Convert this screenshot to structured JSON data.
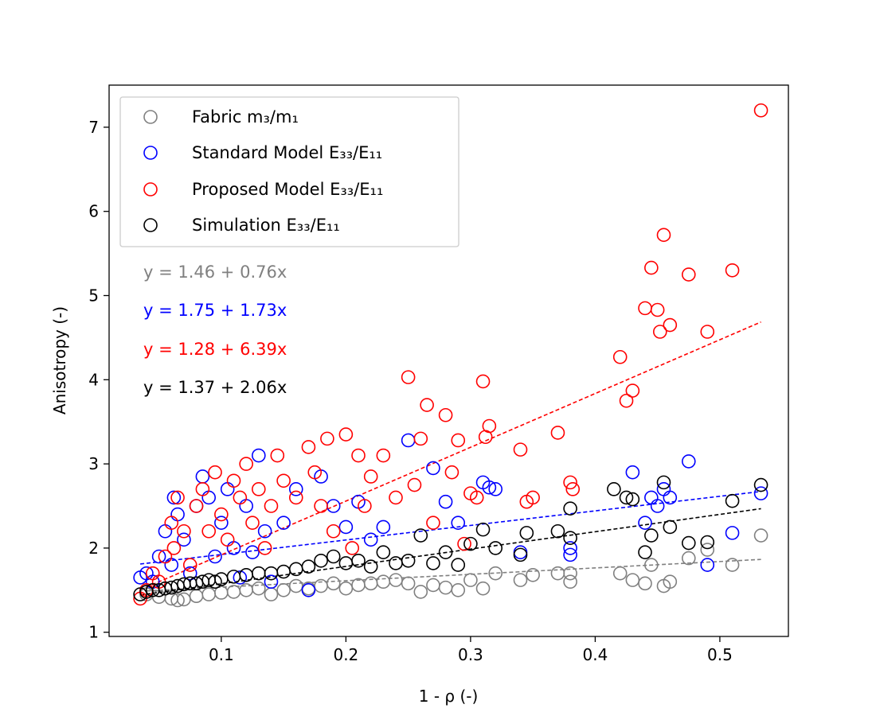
{
  "chart_data": {
    "type": "scatter",
    "xlabel": "1 - ρ (-)",
    "ylabel": "Anisotropy (-)",
    "xlim": [
      0.01,
      0.555
    ],
    "ylim": [
      0.95,
      7.5
    ],
    "x_ticks": [
      0.1,
      0.2,
      0.3,
      0.4,
      0.5
    ],
    "x_tick_labels": [
      "0.1",
      "0.2",
      "0.3",
      "0.4",
      "0.5"
    ],
    "y_ticks": [
      1,
      2,
      3,
      4,
      5,
      6,
      7
    ],
    "y_tick_labels": [
      "1",
      "2",
      "3",
      "4",
      "5",
      "6",
      "7"
    ],
    "grid": false,
    "legend_position": "top-left",
    "legend": [
      {
        "label": "Fabric m₃/m₁",
        "color": "#808080"
      },
      {
        "label": "Standard Model E₃₃/E₁₁",
        "color": "#0000ff"
      },
      {
        "label": "Proposed Model E₃₃/E₁₁",
        "color": "#ff0000"
      },
      {
        "label": "Simulation E₃₃/E₁₁",
        "color": "#000000"
      }
    ],
    "equations": [
      {
        "text": "y = 1.46 + 0.76x",
        "color": "#808080"
      },
      {
        "text": "y = 1.75 + 1.73x",
        "color": "#0000ff"
      },
      {
        "text": "y = 1.28 + 6.39x",
        "color": "#ff0000"
      },
      {
        "text": "y = 1.37 + 2.06x",
        "color": "#000000"
      }
    ],
    "series": [
      {
        "name": "Fabric m₃/m₁",
        "color": "#808080",
        "trend": {
          "intercept": 1.46,
          "slope": 0.76
        },
        "x": [
          0.04,
          0.05,
          0.06,
          0.065,
          0.07,
          0.08,
          0.09,
          0.1,
          0.11,
          0.12,
          0.13,
          0.14,
          0.15,
          0.16,
          0.17,
          0.18,
          0.19,
          0.2,
          0.21,
          0.22,
          0.23,
          0.24,
          0.25,
          0.26,
          0.27,
          0.28,
          0.29,
          0.3,
          0.31,
          0.32,
          0.34,
          0.35,
          0.37,
          0.38,
          0.38,
          0.42,
          0.43,
          0.44,
          0.445,
          0.455,
          0.46,
          0.475,
          0.49,
          0.51,
          0.533
        ],
        "y": [
          1.45,
          1.42,
          1.4,
          1.38,
          1.39,
          1.43,
          1.45,
          1.47,
          1.48,
          1.5,
          1.52,
          1.45,
          1.5,
          1.55,
          1.52,
          1.55,
          1.58,
          1.52,
          1.56,
          1.58,
          1.6,
          1.62,
          1.58,
          1.48,
          1.56,
          1.53,
          1.5,
          1.62,
          1.52,
          1.7,
          1.62,
          1.68,
          1.7,
          1.6,
          1.7,
          1.7,
          1.62,
          1.58,
          1.8,
          1.55,
          1.6,
          1.88,
          1.98,
          1.8,
          2.15
        ]
      },
      {
        "name": "Standard Model E₃₃/E₁₁",
        "color": "#0000ff",
        "trend": {
          "intercept": 1.75,
          "slope": 1.73
        },
        "x": [
          0.035,
          0.04,
          0.045,
          0.05,
          0.055,
          0.06,
          0.062,
          0.065,
          0.07,
          0.075,
          0.08,
          0.085,
          0.09,
          0.095,
          0.1,
          0.105,
          0.11,
          0.115,
          0.12,
          0.125,
          0.13,
          0.135,
          0.14,
          0.15,
          0.16,
          0.17,
          0.18,
          0.19,
          0.2,
          0.21,
          0.22,
          0.23,
          0.25,
          0.27,
          0.28,
          0.29,
          0.31,
          0.315,
          0.32,
          0.34,
          0.38,
          0.38,
          0.43,
          0.44,
          0.445,
          0.45,
          0.455,
          0.46,
          0.475,
          0.49,
          0.51,
          0.533
        ],
        "y": [
          1.65,
          1.7,
          1.6,
          1.9,
          2.2,
          1.8,
          2.6,
          2.4,
          2.1,
          1.7,
          2.5,
          2.85,
          2.6,
          1.9,
          2.3,
          2.7,
          2.0,
          1.65,
          2.5,
          1.95,
          3.1,
          2.2,
          1.6,
          2.3,
          2.7,
          1.5,
          2.85,
          2.5,
          2.25,
          2.55,
          2.1,
          2.25,
          3.28,
          2.95,
          2.55,
          2.3,
          2.78,
          2.72,
          2.7,
          1.95,
          2.0,
          1.92,
          2.9,
          2.3,
          2.6,
          2.5,
          2.7,
          2.6,
          3.03,
          1.8,
          2.18,
          2.65
        ]
      },
      {
        "name": "Proposed Model E₃₃/E₁₁",
        "color": "#ff0000",
        "trend": {
          "intercept": 1.28,
          "slope": 6.39
        },
        "x": [
          0.035,
          0.04,
          0.045,
          0.05,
          0.055,
          0.06,
          0.062,
          0.065,
          0.07,
          0.075,
          0.08,
          0.085,
          0.09,
          0.095,
          0.1,
          0.105,
          0.11,
          0.115,
          0.12,
          0.125,
          0.13,
          0.135,
          0.14,
          0.145,
          0.15,
          0.16,
          0.17,
          0.175,
          0.18,
          0.185,
          0.19,
          0.2,
          0.205,
          0.21,
          0.215,
          0.22,
          0.23,
          0.24,
          0.25,
          0.255,
          0.26,
          0.265,
          0.27,
          0.28,
          0.285,
          0.29,
          0.295,
          0.3,
          0.305,
          0.31,
          0.312,
          0.315,
          0.34,
          0.345,
          0.35,
          0.37,
          0.38,
          0.382,
          0.42,
          0.425,
          0.43,
          0.44,
          0.445,
          0.45,
          0.452,
          0.455,
          0.46,
          0.475,
          0.49,
          0.51,
          0.533
        ],
        "y": [
          1.4,
          1.5,
          1.7,
          1.6,
          1.9,
          2.3,
          2.0,
          2.6,
          2.2,
          1.8,
          2.5,
          2.7,
          2.2,
          2.9,
          2.4,
          2.1,
          2.8,
          2.6,
          3.0,
          2.3,
          2.7,
          2.0,
          2.5,
          3.1,
          2.8,
          2.6,
          3.2,
          2.9,
          2.5,
          3.3,
          2.2,
          3.35,
          2.0,
          3.1,
          2.5,
          2.85,
          3.1,
          2.6,
          4.03,
          2.75,
          3.3,
          3.7,
          2.3,
          3.58,
          2.9,
          3.28,
          2.05,
          2.65,
          2.6,
          3.98,
          3.32,
          3.45,
          3.17,
          2.55,
          2.6,
          3.37,
          2.78,
          2.7,
          4.27,
          3.75,
          3.87,
          4.85,
          5.33,
          4.83,
          4.57,
          5.72,
          4.65,
          5.25,
          4.57,
          5.3,
          7.2
        ]
      },
      {
        "name": "Simulation E₃₃/E₁₁",
        "color": "#000000",
        "trend": {
          "intercept": 1.37,
          "slope": 2.06
        },
        "x": [
          0.035,
          0.04,
          0.045,
          0.05,
          0.055,
          0.06,
          0.065,
          0.07,
          0.075,
          0.08,
          0.085,
          0.09,
          0.095,
          0.1,
          0.11,
          0.12,
          0.13,
          0.14,
          0.15,
          0.16,
          0.17,
          0.18,
          0.19,
          0.2,
          0.21,
          0.22,
          0.23,
          0.24,
          0.25,
          0.26,
          0.27,
          0.28,
          0.29,
          0.3,
          0.31,
          0.32,
          0.34,
          0.345,
          0.37,
          0.38,
          0.38,
          0.415,
          0.425,
          0.43,
          0.44,
          0.445,
          0.455,
          0.46,
          0.475,
          0.49,
          0.51,
          0.533
        ],
        "y": [
          1.45,
          1.48,
          1.5,
          1.5,
          1.52,
          1.53,
          1.55,
          1.57,
          1.58,
          1.58,
          1.6,
          1.62,
          1.6,
          1.63,
          1.66,
          1.68,
          1.7,
          1.7,
          1.72,
          1.75,
          1.78,
          1.85,
          1.9,
          1.82,
          1.85,
          1.78,
          1.95,
          1.82,
          1.85,
          2.15,
          1.82,
          1.95,
          1.8,
          2.05,
          2.22,
          2.0,
          1.92,
          2.18,
          2.2,
          2.47,
          2.12,
          2.7,
          2.6,
          2.58,
          1.95,
          2.15,
          2.78,
          2.25,
          2.06,
          2.07,
          2.56,
          2.75
        ]
      }
    ]
  }
}
